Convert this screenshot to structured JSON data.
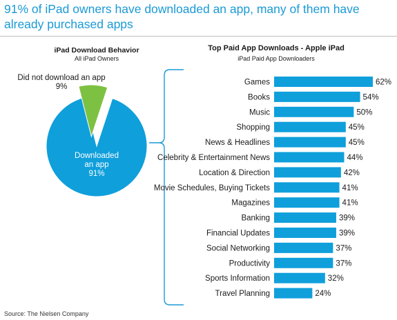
{
  "headline": "91% of iPad owners have downloaded an app, many of them have already purchased apps",
  "source": "Source: The Nielsen Company",
  "colors": {
    "bar": "#0f9fdb",
    "pie_main": "#0f9fdb",
    "pie_slice": "#7dc142",
    "bracket": "#1b9ad6"
  },
  "chart_data": [
    {
      "type": "pie",
      "title": "iPad Download Behavior",
      "subtitle": "All iPad Owners",
      "slices": [
        {
          "label_line1": "Downloaded",
          "label_line2": "an app",
          "value": 91,
          "value_label": "91%"
        },
        {
          "label_line1": "Did not download an app",
          "label_line2": "",
          "value": 9,
          "value_label": "9%"
        }
      ]
    },
    {
      "type": "bar",
      "orientation": "horizontal",
      "title": "Top Paid App Downloads - Apple iPad",
      "subtitle": "iPad Paid App Downloaders",
      "categories": [
        "Games",
        "Books",
        "Music",
        "Shopping",
        "News & Headlines",
        "Celebrity & Entertainment News",
        "Location & Direction",
        "Movie Schedules, Buying Tickets",
        "Magazines",
        "Banking",
        "Financial Updates",
        "Social Networking",
        "Productivity",
        "Sports Information",
        "Travel Planning"
      ],
      "values": [
        62,
        54,
        50,
        45,
        45,
        44,
        42,
        41,
        41,
        39,
        39,
        37,
        37,
        32,
        24
      ],
      "value_labels": [
        "62%",
        "54%",
        "50%",
        "45%",
        "45%",
        "44%",
        "42%",
        "41%",
        "41%",
        "39%",
        "39%",
        "37%",
        "37%",
        "32%",
        "24%"
      ],
      "xlim": [
        0,
        62
      ],
      "grid": false
    }
  ]
}
